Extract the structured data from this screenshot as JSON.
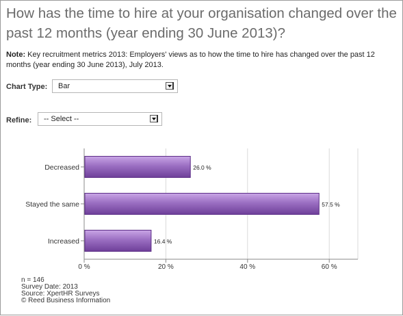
{
  "title": "How has the time to hire at your organisation changed over the past 12 months (year ending 30 June 2013)?",
  "note": {
    "label": "Note:",
    "text": " Key recruitment metrics 2013: Employers' views as to how the time to hire has changed over the past 12 months (year ending 30 June 2013), July 2013."
  },
  "controls": {
    "chart_type_label": "Chart Type:",
    "chart_type_value": "Bar",
    "refine_label": "Refine:",
    "refine_value": "-- Select --"
  },
  "footer": {
    "n": "n = 146",
    "survey_date": "Survey Date: 2013",
    "source": "Source: XpertHR Surveys",
    "copyright": "© Reed Business Information"
  },
  "colors": {
    "bar_fill": "#9b6fc2",
    "bar_stroke": "#5b2d86",
    "axis": "#888888"
  },
  "chart_data": {
    "type": "bar",
    "orientation": "horizontal",
    "categories": [
      "Decreased",
      "Stayed the same",
      "Increased"
    ],
    "values": [
      26.0,
      57.5,
      16.4
    ],
    "data_labels": [
      "26.0 %",
      "57.5 %",
      "16.4 %"
    ],
    "xticks": [
      "0 %",
      "20 %",
      "40 %",
      "60 %"
    ],
    "xtick_values": [
      0,
      20,
      40,
      60
    ],
    "xlim": [
      0,
      67
    ],
    "grid": true
  }
}
